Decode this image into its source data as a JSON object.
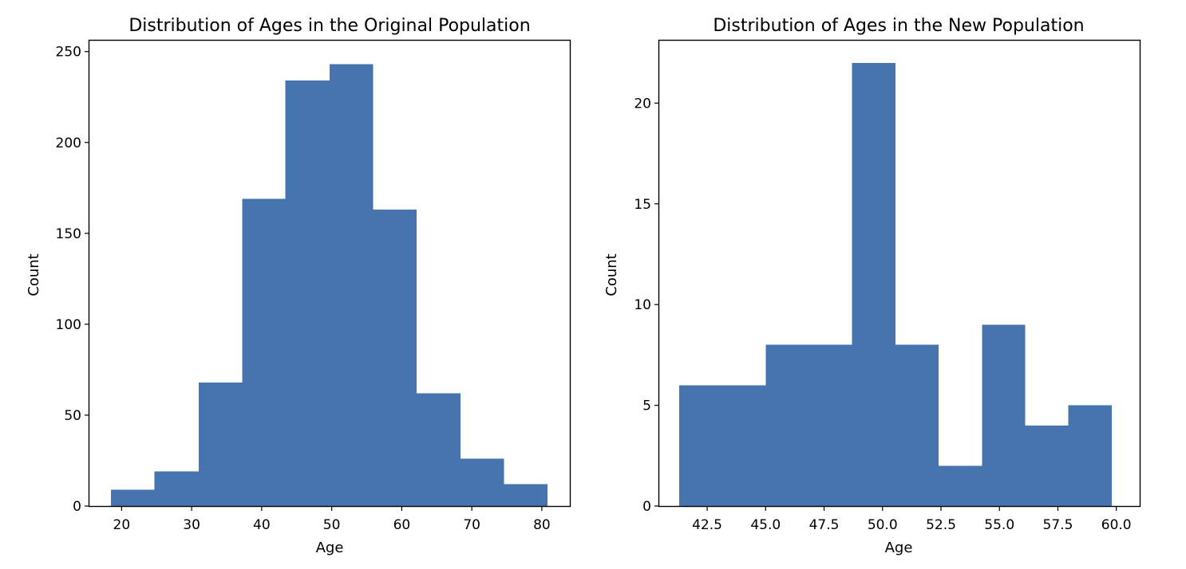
{
  "chart_data": [
    {
      "type": "bar",
      "title": "Distribution of Ages in the Original Population",
      "xlabel": "Age",
      "ylabel": "Count",
      "xlim": [
        15.4,
        84.0
      ],
      "ylim": [
        0,
        256
      ],
      "xticks": [
        20,
        30,
        40,
        50,
        60,
        70,
        80
      ],
      "xtick_labels": [
        "20",
        "30",
        "40",
        "50",
        "60",
        "70",
        "80"
      ],
      "yticks": [
        0,
        50,
        100,
        150,
        200,
        250
      ],
      "ytick_labels": [
        "0",
        "50",
        "100",
        "150",
        "200",
        "250"
      ],
      "bin_edges": [
        18.5,
        24.7,
        31.0,
        37.2,
        43.4,
        49.7,
        55.9,
        62.1,
        68.4,
        74.6,
        80.8
      ],
      "values": [
        9,
        19,
        68,
        169,
        234,
        243,
        163,
        62,
        26,
        12
      ],
      "color": "#4674ae",
      "grid": false
    },
    {
      "type": "bar",
      "title": "Distribution of Ages in the New Population",
      "xlabel": "Age",
      "ylabel": "Count",
      "xlim": [
        40.45,
        61.0
      ],
      "ylim": [
        0,
        23.1
      ],
      "xticks": [
        42.5,
        45.0,
        47.5,
        50.0,
        52.5,
        55.0,
        57.5,
        60.0
      ],
      "xtick_labels": [
        "42.5",
        "45.0",
        "47.5",
        "50.0",
        "52.5",
        "55.0",
        "57.5",
        "60.0"
      ],
      "yticks": [
        0,
        5,
        10,
        15,
        20
      ],
      "ytick_labels": [
        "0",
        "5",
        "10",
        "15",
        "20"
      ],
      "bin_edges": [
        41.3,
        43.15,
        45.0,
        46.85,
        48.7,
        50.55,
        52.4,
        54.25,
        56.1,
        57.95,
        59.8
      ],
      "values": [
        6,
        6,
        8,
        8,
        22,
        8,
        2,
        9,
        4,
        5
      ],
      "color": "#4674ae",
      "grid": false
    }
  ]
}
